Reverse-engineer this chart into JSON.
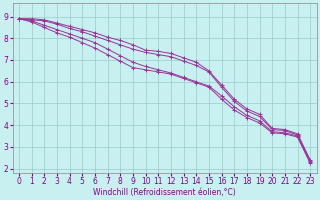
{
  "xlabel": "Windchill (Refroidissement éolien,°C)",
  "background_color": "#c8f0f0",
  "grid_color": "#99cccc",
  "line_color": "#993399",
  "xlim": [
    -0.5,
    23.5
  ],
  "ylim": [
    1.8,
    9.6
  ],
  "xticks": [
    0,
    1,
    2,
    3,
    4,
    5,
    6,
    7,
    8,
    9,
    10,
    11,
    12,
    13,
    14,
    15,
    16,
    17,
    18,
    19,
    20,
    21,
    22,
    23
  ],
  "yticks": [
    2,
    3,
    4,
    5,
    6,
    7,
    8,
    9
  ],
  "series": [
    [
      8.9,
      8.9,
      8.85,
      8.7,
      8.55,
      8.4,
      8.25,
      8.05,
      7.9,
      7.7,
      7.45,
      7.4,
      7.3,
      7.1,
      6.9,
      6.5,
      5.85,
      5.2,
      4.75,
      4.5,
      3.85,
      3.8,
      3.6,
      2.4
    ],
    [
      8.9,
      8.85,
      8.8,
      8.65,
      8.45,
      8.3,
      8.1,
      7.9,
      7.7,
      7.5,
      7.35,
      7.25,
      7.15,
      6.95,
      6.75,
      6.45,
      5.75,
      5.1,
      4.65,
      4.4,
      3.8,
      3.75,
      3.55,
      2.35
    ],
    [
      8.9,
      8.8,
      8.6,
      8.4,
      8.2,
      8.0,
      7.8,
      7.5,
      7.2,
      6.9,
      6.7,
      6.55,
      6.4,
      6.2,
      6.0,
      5.8,
      5.35,
      4.85,
      4.45,
      4.2,
      3.7,
      3.65,
      3.5,
      2.3
    ],
    [
      8.9,
      8.75,
      8.5,
      8.25,
      8.05,
      7.8,
      7.55,
      7.25,
      6.95,
      6.65,
      6.55,
      6.45,
      6.35,
      6.15,
      5.95,
      5.75,
      5.2,
      4.7,
      4.35,
      4.1,
      3.65,
      3.6,
      3.45,
      2.25
    ]
  ],
  "xlabel_fontsize": 5.5,
  "tick_fontsize": 5.5
}
